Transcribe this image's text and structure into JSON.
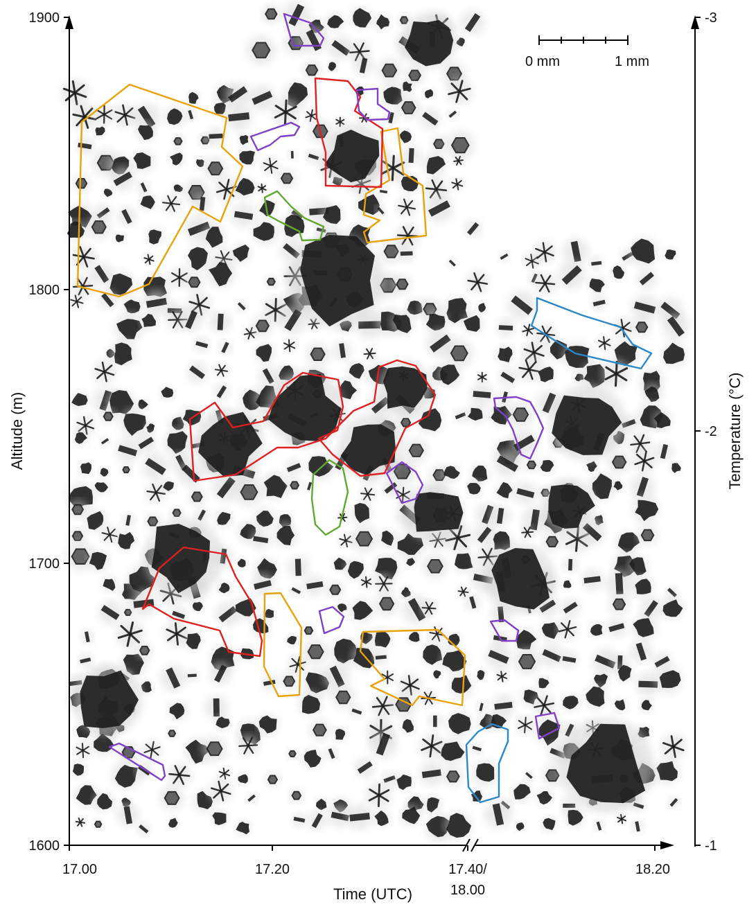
{
  "left_axis": {
    "title": "Altitude (m)",
    "ticks": [
      {
        "label": "1900",
        "value": 1900
      },
      {
        "label": "1800",
        "value": 1800
      },
      {
        "label": "1700",
        "value": 1700
      },
      {
        "label": "1600",
        "value": 1600
      }
    ]
  },
  "right_axis": {
    "title": "Temperature (°C)",
    "ticks": [
      {
        "label": "-3",
        "value": -3
      },
      {
        "label": "-2",
        "value": -2
      },
      {
        "label": "-1",
        "value": -1
      }
    ]
  },
  "bottom_axis": {
    "title": "Time (UTC)",
    "ticks": [
      {
        "label": "17.00"
      },
      {
        "label": "17.20"
      },
      {
        "label": "17.40/",
        "label2": "18.00"
      },
      {
        "label": "18.20"
      }
    ],
    "break_marker": "//"
  },
  "scale_bar": {
    "left_label": "0 mm",
    "right_label": "1 mm"
  },
  "outline_colors": {
    "red": "#e02020",
    "orange": "#e8a20c",
    "purple": "#8040c8",
    "green": "#60a830",
    "blue": "#2a88c8"
  },
  "crystal_color": "#1c1c1c"
}
